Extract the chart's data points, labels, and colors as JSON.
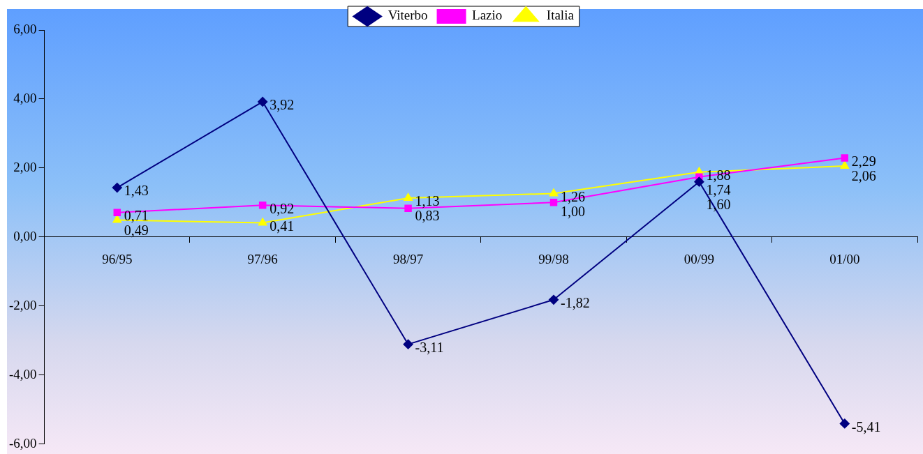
{
  "chart_data": {
    "type": "line",
    "categories": [
      "96/95",
      "97/96",
      "98/97",
      "99/98",
      "00/99",
      "01/00"
    ],
    "series": [
      {
        "name": "Viterbo",
        "color": "#000080",
        "marker": "diamond",
        "values": [
          1.43,
          3.92,
          -3.11,
          -1.82,
          1.6,
          -5.41
        ],
        "value_labels": [
          "1,43",
          "3,92",
          "-3,11",
          "-1,82",
          "1,60",
          "-5,41"
        ]
      },
      {
        "name": "Lazio",
        "color": "#ff00ff",
        "marker": "square",
        "values": [
          0.71,
          0.92,
          0.83,
          1.0,
          1.74,
          2.29
        ],
        "value_labels": [
          "0,71",
          "0,92",
          "0,83",
          "1,00",
          "1,74",
          "2,29"
        ]
      },
      {
        "name": "Italia",
        "color": "#ffff00",
        "marker": "triangle",
        "values": [
          0.49,
          0.41,
          1.13,
          1.26,
          1.88,
          2.06
        ],
        "value_labels": [
          "0,49",
          "0,41",
          "1,13",
          "1,26",
          "1,88",
          "2,06"
        ]
      }
    ],
    "ylim": [
      -6,
      6
    ],
    "yticks": [
      {
        "value": -6,
        "label": "-6,00"
      },
      {
        "value": -4,
        "label": "-4,00"
      },
      {
        "value": -2,
        "label": "-2,00"
      },
      {
        "value": 0,
        "label": "0,00"
      },
      {
        "value": 2,
        "label": "2,00"
      },
      {
        "value": 4,
        "label": "4,00"
      },
      {
        "value": 6,
        "label": "6,00"
      }
    ],
    "grid": false,
    "legend": "top"
  }
}
